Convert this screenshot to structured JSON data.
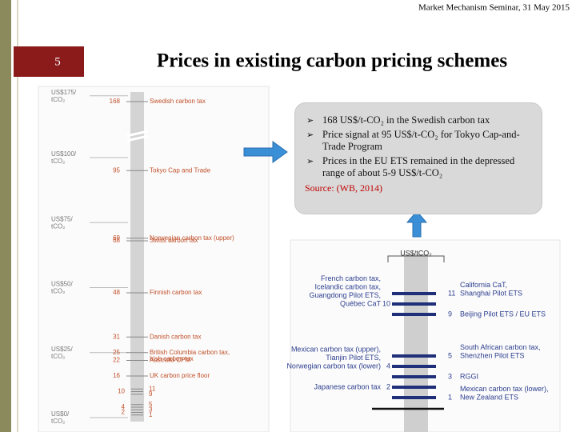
{
  "header": {
    "seminar": "Market Mechanism Seminar, 31 May 2015",
    "slide_number": "5",
    "title": "Prices in existing carbon pricing schemes"
  },
  "callout": {
    "bullets": [
      "168 US$/t-CO₂ in the Swedish carbon tax",
      "Price signal at 95 US$/t-CO₂ for Tokyo Cap-and-Trade Program",
      "Prices in the EU ETS remained in the depressed range of about 5-9 US$/t-CO₂"
    ],
    "source": "Source: (WB, 2014)"
  },
  "left_chart": {
    "axis_ticks": [
      {
        "value": 175,
        "lines": [
          "US$175/",
          "tCO₂"
        ]
      },
      {
        "value": 100,
        "lines": [
          "US$100/",
          "tCO₂"
        ]
      },
      {
        "value": 75,
        "lines": [
          "US$75/",
          "tCO₂"
        ]
      },
      {
        "value": 50,
        "lines": [
          "US$50/",
          "tCO₂"
        ]
      },
      {
        "value": 25,
        "lines": [
          "US$25/",
          "tCO₂"
        ]
      },
      {
        "value": 0,
        "lines": [
          "US$0/",
          "tCO₂"
        ]
      }
    ],
    "entries": [
      {
        "value": 168,
        "lines": [
          "Swedish carbon tax"
        ]
      },
      {
        "value": 95,
        "lines": [
          "Tokyo Cap and Trade"
        ]
      },
      {
        "value": 69,
        "lines": [
          "Norwegian carbon tax (upper)"
        ]
      },
      {
        "value": 68,
        "lines": [
          "Swiss carbon tax"
        ]
      },
      {
        "value": 48,
        "lines": [
          "Finnish carbon tax"
        ]
      },
      {
        "value": 31,
        "lines": [
          "Danish carbon tax"
        ]
      },
      {
        "value": 25,
        "lines": [
          "British Columbia carbon tax,",
          "Irish carbon tax"
        ]
      },
      {
        "value": 22,
        "lines": [
          "Australia CPM"
        ]
      },
      {
        "value": 16,
        "lines": [
          "UK carbon price floor"
        ]
      },
      {
        "value": 11,
        "side": "right"
      },
      {
        "value": 10,
        "side": "left"
      },
      {
        "value": 9,
        "side": "right"
      },
      {
        "value": 5,
        "side": "right"
      },
      {
        "value": 4,
        "side": "left"
      },
      {
        "value": 3,
        "side": "right"
      },
      {
        "value": 2,
        "side": "left"
      },
      {
        "value": 1,
        "side": "right"
      }
    ]
  },
  "right_chart": {
    "title": "US$/tCO₂",
    "entries": [
      {
        "value": 11,
        "side": "right",
        "lines": [
          "California CaT,",
          "Shanghai Pilot ETS"
        ]
      },
      {
        "value": 10,
        "side": "left",
        "lines": [
          "French carbon tax,",
          "Icelandic carbon tax,",
          "Guangdong Pilot ETS,",
          "Québec CaT"
        ]
      },
      {
        "value": 9,
        "side": "right",
        "lines": [
          "Beijing Pilot ETS / EU ETS"
        ]
      },
      {
        "value": 5,
        "side": "right",
        "lines": [
          "South African carbon tax,",
          "Shenzhen Pilot ETS"
        ]
      },
      {
        "value": 4,
        "side": "left",
        "lines": [
          "Mexican carbon tax (upper),",
          "Tianjin Pilot ETS,",
          "Norwegian carbon tax (lower)"
        ]
      },
      {
        "value": 3,
        "side": "right",
        "lines": [
          "RGGI"
        ]
      },
      {
        "value": 2,
        "side": "left",
        "lines": [
          "Japanese carbon tax"
        ]
      },
      {
        "value": 1,
        "side": "right",
        "lines": [
          "Mexican carbon tax (lower),",
          "New Zealand ETS"
        ]
      }
    ]
  }
}
